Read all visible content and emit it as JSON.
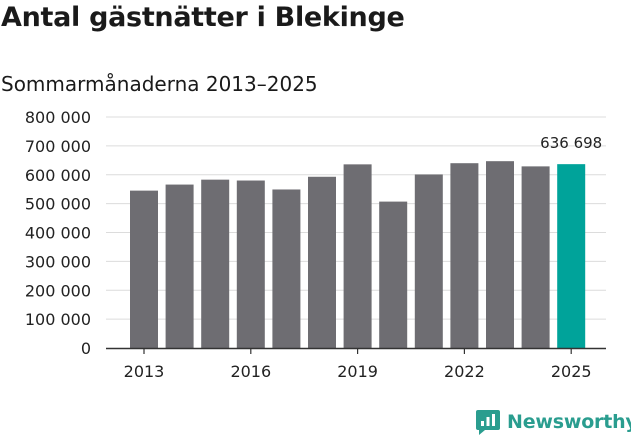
{
  "header": {
    "title": "Antal gästnätter i Blekinge",
    "subtitle": "Sommarmånaderna 2013–2025"
  },
  "brand": {
    "name": "Newsworthy",
    "logo_icon": "bar-chart-speech-bubble-icon",
    "color": "#2a9d8f"
  },
  "chart_data": {
    "type": "bar",
    "title": "Antal gästnätter i Blekinge",
    "subtitle": "Sommarmånaderna 2013–2025",
    "xlabel": "",
    "ylabel": "",
    "categories": [
      "2013",
      "2014",
      "2015",
      "2016",
      "2017",
      "2018",
      "2019",
      "2020",
      "2021",
      "2022",
      "2023",
      "2024",
      "2025"
    ],
    "values": [
      545000,
      566000,
      583000,
      580000,
      549000,
      593000,
      636000,
      507000,
      601000,
      640000,
      647000,
      629000,
      636698
    ],
    "x_tick_labels": [
      "2013",
      "2016",
      "2019",
      "2022",
      "2025"
    ],
    "y_ticks": [
      0,
      100000,
      200000,
      300000,
      400000,
      500000,
      600000,
      700000,
      800000
    ],
    "y_tick_labels": [
      "0",
      "100 000",
      "200 000",
      "300 000",
      "400 000",
      "500 000",
      "600 000",
      "700 000",
      "800 000"
    ],
    "ylim": [
      0,
      800000
    ],
    "grid": true,
    "highlight_index": 12,
    "highlight_label": "636 698",
    "bar_color": "#6e6d72",
    "highlight_color": "#00a39a"
  }
}
